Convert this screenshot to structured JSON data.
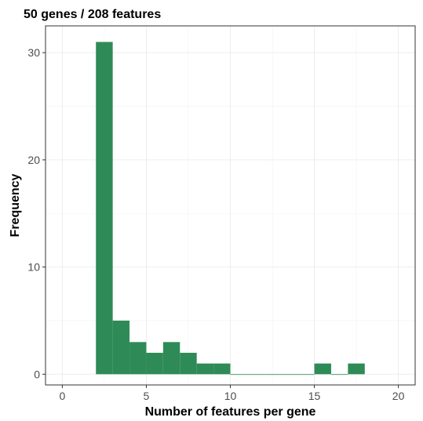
{
  "chart_data": {
    "type": "bar",
    "title": "50 genes / 208 features",
    "xlabel": "Number of features per gene",
    "ylabel": "Frequency",
    "bin_width": 1,
    "bins": [
      {
        "start": 2,
        "end": 3,
        "count": 31
      },
      {
        "start": 3,
        "end": 4,
        "count": 5
      },
      {
        "start": 4,
        "end": 5,
        "count": 3
      },
      {
        "start": 5,
        "end": 6,
        "count": 2
      },
      {
        "start": 6,
        "end": 7,
        "count": 3
      },
      {
        "start": 7,
        "end": 8,
        "count": 2
      },
      {
        "start": 8,
        "end": 9,
        "count": 1
      },
      {
        "start": 9,
        "end": 10,
        "count": 1
      },
      {
        "start": 10,
        "end": 11,
        "count": 0
      },
      {
        "start": 11,
        "end": 12,
        "count": 0
      },
      {
        "start": 12,
        "end": 13,
        "count": 0
      },
      {
        "start": 13,
        "end": 14,
        "count": 0
      },
      {
        "start": 14,
        "end": 15,
        "count": 0
      },
      {
        "start": 15,
        "end": 16,
        "count": 1
      },
      {
        "start": 16,
        "end": 17,
        "count": 0
      },
      {
        "start": 17,
        "end": 18,
        "count": 1
      }
    ],
    "xlim": [
      -1,
      21
    ],
    "ylim": [
      -1,
      32.5
    ],
    "xticks": [
      "0",
      "5",
      "10",
      "15",
      "20"
    ],
    "yticks": [
      "0",
      "10",
      "20",
      "30"
    ],
    "bar_color": "#2e8b57",
    "grid": true
  }
}
